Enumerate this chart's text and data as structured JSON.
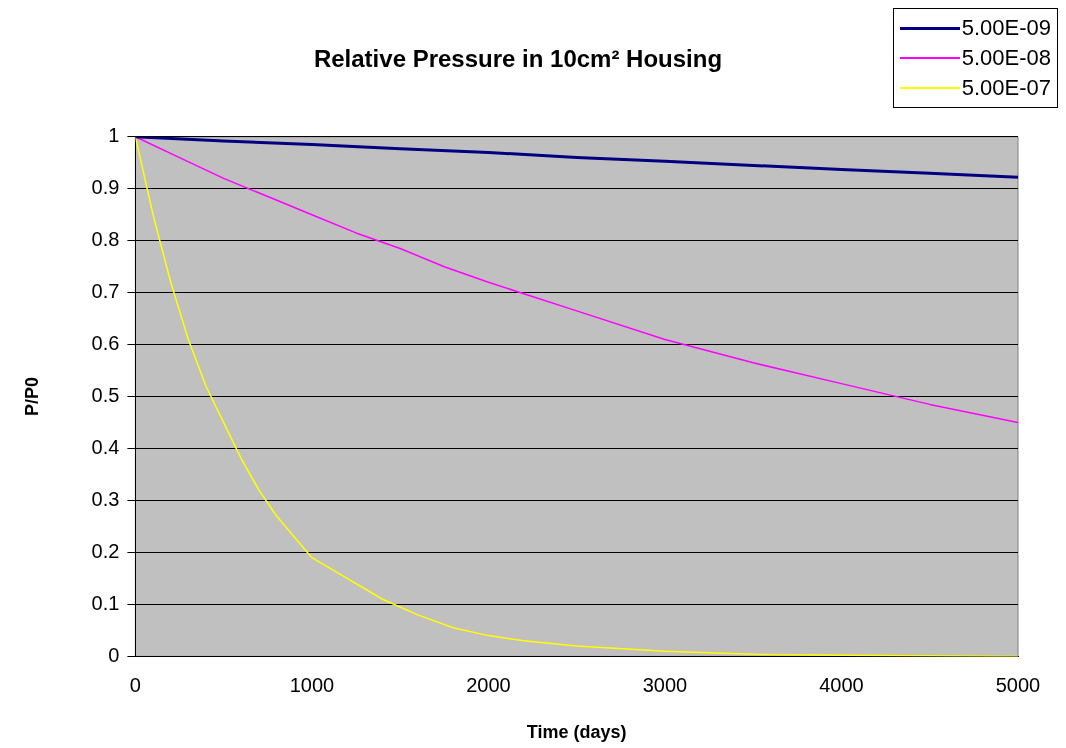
{
  "chart_data": {
    "type": "line",
    "title": "Relative Pressure in 10cm² Housing",
    "xlabel": "Time (days)",
    "ylabel": "P/P0",
    "xlim": [
      0,
      5000
    ],
    "xticks": [
      0,
      1000,
      2000,
      3000,
      4000,
      5000
    ],
    "ylim": [
      0,
      1
    ],
    "yticks": [
      0,
      0.1,
      0.2,
      0.3,
      0.4,
      0.5,
      0.6,
      0.7,
      0.8,
      0.9,
      1
    ],
    "grid": "y",
    "legend": "top right",
    "marker": "none",
    "series": [
      {
        "name": "5.00E-09",
        "color": "#000080",
        "x": [
          0,
          500,
          1000,
          1500,
          2000,
          2500,
          3000,
          3500,
          4000,
          4500,
          5000
        ],
        "values": [
          1,
          0.992,
          0.985,
          0.977,
          0.97,
          0.96,
          0.953,
          0.945,
          0.937,
          0.93,
          0.922
        ]
      },
      {
        "name": "5.00E-08",
        "color": "#ff00ff",
        "x": [
          0,
          250,
          500,
          750,
          1000,
          1250,
          1500,
          1750,
          2000,
          2500,
          3000,
          3500,
          4000,
          4500,
          5000
        ],
        "values": [
          1,
          0.96,
          0.92,
          0.885,
          0.85,
          0.815,
          0.785,
          0.75,
          0.72,
          0.665,
          0.61,
          0.565,
          0.525,
          0.485,
          0.45
        ]
      },
      {
        "name": "5.00E-07",
        "color": "#ffff00",
        "x": [
          0,
          100,
          200,
          300,
          400,
          500,
          600,
          700,
          800,
          900,
          1000,
          1200,
          1400,
          1600,
          1800,
          2000,
          2200,
          2500,
          3000,
          3500,
          4000,
          5000
        ],
        "values": [
          1,
          0.85,
          0.72,
          0.61,
          0.52,
          0.45,
          0.38,
          0.32,
          0.27,
          0.23,
          0.19,
          0.15,
          0.11,
          0.08,
          0.055,
          0.04,
          0.03,
          0.02,
          0.01,
          0.004,
          0.002,
          0
        ]
      }
    ]
  }
}
